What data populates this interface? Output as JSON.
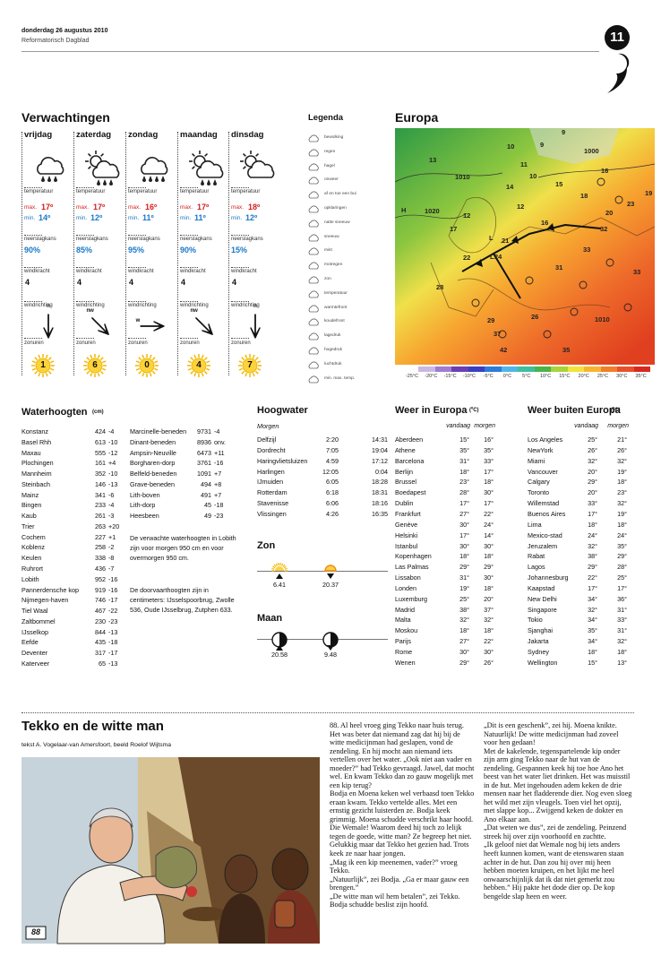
{
  "header": {
    "date": "donderdag 26 augustus 2010",
    "paper": "Reformatorisch Dagblad",
    "page": "11"
  },
  "forecast": {
    "title": "Verwachtingen",
    "labels": {
      "temperature": "temperatuur",
      "max": "max.",
      "min": "min.",
      "rain": "neerslagkans",
      "wind": "windkracht",
      "direction": "windrichting",
      "sun": "zonuren"
    },
    "days": [
      {
        "day": "vrijdag",
        "max": "17º",
        "min": "14º",
        "rain": "90%",
        "wind": "4",
        "direction": "n",
        "sun": "1"
      },
      {
        "day": "zaterdag",
        "max": "17º",
        "min": "12º",
        "rain": "85%",
        "wind": "4",
        "direction": "nw",
        "sun": "6"
      },
      {
        "day": "zondag",
        "max": "16º",
        "min": "11º",
        "rain": "95%",
        "wind": "4",
        "direction": "w",
        "sun": "0"
      },
      {
        "day": "maandag",
        "max": "17º",
        "min": "11º",
        "rain": "90%",
        "wind": "4",
        "direction": "nw",
        "sun": "4"
      },
      {
        "day": "dinsdag",
        "max": "18º",
        "min": "12º",
        "rain": "15%",
        "wind": "4",
        "direction": "n",
        "sun": "7"
      }
    ]
  },
  "legend": {
    "title": "Legenda",
    "items": [
      "bewolking",
      "regen",
      "hagel",
      "onweer",
      "af en toe een bui",
      "opklaringen",
      "natte sneeuw",
      "sneeuw",
      "mist",
      "motregen",
      "zon",
      "temperatuur",
      "warmtefront",
      "koudefront",
      "lagedruk",
      "hogedruk",
      "luchtdruk",
      "min. max. temp."
    ]
  },
  "europe_map": {
    "title": "Europa",
    "labels": [
      "13",
      "10",
      "9",
      "9",
      "1000",
      "11",
      "16",
      "10",
      "14",
      "15",
      "19",
      "18",
      "1010",
      "12",
      "12",
      "1020",
      "20",
      "16",
      "17",
      "22",
      "23",
      "32",
      "28",
      "21",
      "24",
      "31",
      "33",
      "29",
      "26",
      "1010",
      "37",
      "42",
      "35",
      "33",
      "H",
      "L",
      "L"
    ],
    "scale": [
      "-25°C",
      "-20°C",
      "-15°C",
      "-10°C",
      "-5°C",
      "0°C",
      "5°C",
      "10°C",
      "15°C",
      "20°C",
      "25°C",
      "30°C",
      "35°C"
    ]
  },
  "water_levels": {
    "title": "Waterhoogten",
    "unit": "(cm)",
    "left": [
      [
        "Konstanz",
        "424",
        "-4"
      ],
      [
        "Basel Rhh",
        "613",
        "-10"
      ],
      [
        "Maxau",
        "555",
        "-12"
      ],
      [
        "Plochingen",
        "161",
        "+4"
      ],
      [
        "Mannheim",
        "352",
        "-10"
      ],
      [
        "Steinbach",
        "146",
        "-13"
      ],
      [
        "Mainz",
        "341",
        "-6"
      ],
      [
        "Bingen",
        "233",
        "-4"
      ],
      [
        "Kaub",
        "261",
        "-3"
      ],
      [
        "Trier",
        "263",
        "+20"
      ],
      [
        "Cochem",
        "227",
        "+1"
      ],
      [
        "Koblenz",
        "258",
        "-2"
      ],
      [
        "Keulen",
        "338",
        "-8"
      ],
      [
        "Ruhrort",
        "436",
        "-7"
      ],
      [
        "Lobith",
        "952",
        "-16"
      ],
      [
        "Pannerdensche kop",
        "919",
        "-16"
      ],
      [
        "Nijmegen-haven",
        "746",
        "-17"
      ],
      [
        "Tiel Waal",
        "467",
        "-22"
      ],
      [
        "Zaltbommel",
        "230",
        "-23"
      ],
      [
        "IJsselkop",
        "844",
        "-13"
      ],
      [
        "Eefde",
        "435",
        "-18"
      ],
      [
        "Deventer",
        "317",
        "-17"
      ],
      [
        "Katerveer",
        "65",
        "-13"
      ]
    ],
    "right": [
      [
        "Marcinelle-beneden",
        "9731",
        "-4"
      ],
      [
        "Dinant-beneden",
        "8936",
        "onv."
      ],
      [
        "Ampsin-Neuville",
        "6473",
        "+11"
      ],
      [
        "Borgharen-dorp",
        "3761",
        "-16"
      ],
      [
        "Belfeld-beneden",
        "1091",
        "+7"
      ],
      [
        "Grave-beneden",
        "494",
        "+8"
      ],
      [
        "Lith-boven",
        "491",
        "+7"
      ],
      [
        "Lith-dorp",
        "45",
        "-18"
      ],
      [
        "Heesbeen",
        "49",
        "-23"
      ]
    ],
    "notes": [
      "De verwachte waterhoogten in Lobith zijn voor morgen 950 cm en voor overmorgen 950 cm.",
      "De doorvaarthoogten zijn in centimeters: IJsselspoorbrug, Zwolle 536, Oude IJsselbrug, Zutphen 633."
    ]
  },
  "high_water": {
    "title": "Hoogwater",
    "subtitle": "Morgen",
    "rows": [
      [
        "Delfzijl",
        "2:20",
        "14:31"
      ],
      [
        "Dordrecht",
        "7:05",
        "19:04"
      ],
      [
        "Haringvlietsluizen",
        "4:59",
        "17:12"
      ],
      [
        "Harlingen",
        "12:05",
        "0:04"
      ],
      [
        "IJmuiden",
        "6:05",
        "18:28"
      ],
      [
        "Rotterdam",
        "6:18",
        "18:31"
      ],
      [
        "Stavenisse",
        "6:06",
        "18:16"
      ],
      [
        "Vlissingen",
        "4:26",
        "16:35"
      ]
    ]
  },
  "sun": {
    "title": "Zon",
    "rise": "6.41",
    "set": "20.37"
  },
  "moon": {
    "title": "Maan",
    "rise": "20.58",
    "set": "9.48"
  },
  "weather_europe": {
    "title": "Weer in Europa",
    "unit": "(ºC)",
    "today": "vandaag",
    "tomorrow": "morgen",
    "rows": [
      [
        "Aberdeen",
        "15°",
        "16°"
      ],
      [
        "Athene",
        "35°",
        "35°"
      ],
      [
        "Barcelona",
        "31°",
        "33°"
      ],
      [
        "Berlijn",
        "18°",
        "17°"
      ],
      [
        "Brussel",
        "23°",
        "18°"
      ],
      [
        "Boedapest",
        "28°",
        "30°"
      ],
      [
        "Dublin",
        "17°",
        "17°"
      ],
      [
        "Frankfurt",
        "27°",
        "22°"
      ],
      [
        "Genève",
        "30°",
        "24°"
      ],
      [
        "Helsinki",
        "17°",
        "14°"
      ],
      [
        "Istanbul",
        "30°",
        "30°"
      ],
      [
        "Kopenhagen",
        "18°",
        "18°"
      ],
      [
        "Las Palmas",
        "29°",
        "29°"
      ],
      [
        "Lissabon",
        "31°",
        "30°"
      ],
      [
        "Londen",
        "19°",
        "18°"
      ],
      [
        "Luxemburg",
        "25°",
        "20°"
      ],
      [
        "Madrid",
        "38°",
        "37°"
      ],
      [
        "Malta",
        "32°",
        "32°"
      ],
      [
        "Moskou",
        "18°",
        "18°"
      ],
      [
        "Parijs",
        "27°",
        "22°"
      ],
      [
        "Rome",
        "30°",
        "30°"
      ],
      [
        "Wenen",
        "29°",
        "26°"
      ]
    ]
  },
  "weather_world": {
    "title": "Weer buiten Europa",
    "unit": "(ºC)",
    "today": "vandaag",
    "tomorrow": "morgen",
    "rows": [
      [
        "Los Angeles",
        "25°",
        "21°"
      ],
      [
        "NewYork",
        "26°",
        "26°"
      ],
      [
        "Miami",
        "32°",
        "32°"
      ],
      [
        "Vancouver",
        "20°",
        "19°"
      ],
      [
        "Calgary",
        "29°",
        "18°"
      ],
      [
        "Toronto",
        "20°",
        "23°"
      ],
      [
        "Willemstad",
        "33°",
        "32°"
      ],
      [
        "Buenos Aires",
        "17°",
        "19°"
      ],
      [
        "Lima",
        "18°",
        "18°"
      ],
      [
        "Mexico-stad",
        "24°",
        "24°"
      ],
      [
        "Jeruzalem",
        "32°",
        "35°"
      ],
      [
        "Rabat",
        "38°",
        "29°"
      ],
      [
        "Lagos",
        "29°",
        "28°"
      ],
      [
        "Johannesburg",
        "22°",
        "25°"
      ],
      [
        "Kaapstad",
        "17°",
        "17°"
      ],
      [
        "New Delhi",
        "34°",
        "36°"
      ],
      [
        "Singapore",
        "32°",
        "31°"
      ],
      [
        "Tokio",
        "34°",
        "33°"
      ],
      [
        "Sjanghai",
        "35°",
        "31°"
      ],
      [
        "Jakarta",
        "34°",
        "32°"
      ],
      [
        "Sydney",
        "18°",
        "18°"
      ],
      [
        "Wellington",
        "15°",
        "13°"
      ]
    ]
  },
  "comic": {
    "title": "Tekko en de witte man",
    "credit": "tekst A. Vogelaar-van Amersfoort, beeld Roelof Wijtsma",
    "panel": "88",
    "columns": [
      [
        "88. Al heel vroeg ging Tekko naar huis terug. Het was beter dat niemand zag dat hij bij de witte medicijnman had geslapen, vond de zendeling. En hij mocht aan niemand iets vertellen over het water. „Ook niet aan vader en moeder?” had Tekko gevraagd. Jawel, dat mocht wel. En kwam Tekko dan zo gauw mogelijk met een kip terug?",
        "Bodja en Moena keken wel verbaasd toen Tekko eraan kwam. Tekko vertelde alles. Met een ernstig gezicht luisterden ze. Bodja keek grimmig. Moena schudde verschrikt haar hoofd. Die Wemale! Waarom deed hij toch zo lelijk tegen de goede, witte man? Ze begreep het niet. Gelukkig maar dat Tekko het gezien had. Trots keek ze naar haar jongen.",
        "„Mag ik een kip meenemen, vader?” vroeg Tekko.",
        "„Natuurlijk”, zei Bodja. „Ga er maar gauw een brengen.”",
        "„De witte man wil hem betalen”, zei Tekko. Bodja schudde beslist zijn hoofd."
      ],
      [
        "„Dit is een geschenk”, zei hij. Moena knikte. Natuurlijk! De witte medicijnman had zoveel voor hen gedaan!",
        "Met de kakelende, tegenspartelende kip onder zijn arm ging Tekko naar de hut van de zendeling. Gespannen keek hij toe hoe Ano het beest van het water liet drinken. Het was muisstil in de hut. Met ingehouden adem keken de drie mensen naar het fladderende dier. Nog even sloeg het wild met zijn vleugels. Toen viel het opzij, met slappe kop... Zwijgend keken de dokter en Ano elkaar aan.",
        "„Dat weten we dus”, zei de zendeling. Peinzend streek hij over zijn voorhoofd en zuchtte.",
        "„Ik geloof niet dat Wemale nog bij iets anders heeft kunnen komen, want de etenswaren staan achter in de hut. Dan zou hij over mij heen hebben moeten kruipen, en het lijkt me heel onwaarschijnlijk dat ik dat niet gemerkt zou hebben.” Hij pakte het dode dier op. De kop bengelde slap heen en weer."
      ]
    ]
  }
}
